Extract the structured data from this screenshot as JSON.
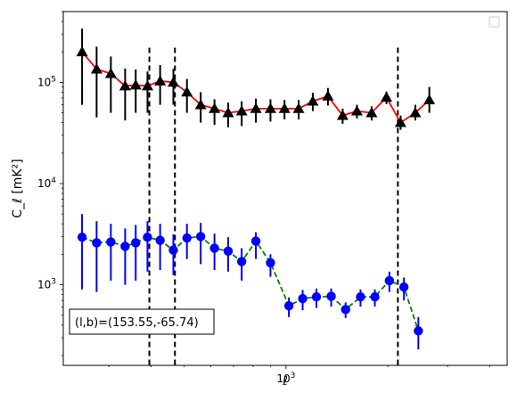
{
  "chart_data": {
    "type": "scatter",
    "title": "",
    "xlabel": "ℓ",
    "ylabel": "C_ℓ  [mK²]",
    "xscale": "log",
    "yscale": "log",
    "xlim": [
      220,
      4500
    ],
    "ylim": [
      160,
      500000
    ],
    "x_tick_labels": [
      {
        "value": 1000,
        "label": "10",
        "exp": "3"
      }
    ],
    "y_tick_labels": [
      {
        "value": 1000,
        "label": "10",
        "exp": "3"
      },
      {
        "value": 10000,
        "label": "10",
        "exp": "4"
      },
      {
        "value": 100000,
        "label": "10",
        "exp": "5"
      }
    ],
    "x": [
      250,
      276,
      304,
      335,
      369,
      406,
      448,
      493,
      543,
      598,
      659,
      726,
      800,
      881,
      971,
      1070,
      1178,
      1298,
      1430,
      1575,
      1735,
      1911,
      2105,
      2319,
      2555,
      2814,
      3100,
      3415,
      3762,
      4144
    ],
    "series": [
      {
        "color": "#ff0000",
        "marker": "triangle",
        "marker_color": "#000000",
        "errorbar_color": "#000000",
        "linestyle": "solid",
        "values": [
          200000,
          135000,
          122000,
          92000,
          94000,
          92000,
          103000,
          100000,
          80000,
          60000,
          55000,
          50000,
          52000,
          55000,
          55000,
          55000,
          55000,
          65000,
          73000,
          47000,
          52000,
          50000,
          71000,
          40000,
          50000,
          67000
        ],
        "xs": [
          250,
          276,
          304,
          335,
          360,
          390,
          425,
          465,
          510,
          560,
          615,
          675,
          740,
          815,
          900,
          990,
          1090,
          1200,
          1330,
          1470,
          1620,
          1790,
          1980,
          2180,
          2410,
          2650
        ],
        "err_low": [
          140000,
          90000,
          72000,
          50000,
          44000,
          42000,
          43000,
          40000,
          30000,
          20000,
          17000,
          14000,
          15000,
          15000,
          14000,
          12000,
          12000,
          13000,
          14000,
          8000,
          8000,
          8000,
          10000,
          6000,
          8000,
          17000
        ],
        "err_high": [
          140000,
          90000,
          58000,
          45000,
          40000,
          36000,
          45000,
          36000,
          28000,
          20000,
          13000,
          13000,
          13000,
          14000,
          13000,
          12000,
          12000,
          14000,
          15000,
          8000,
          8000,
          8000,
          10000,
          7000,
          10000,
          23000
        ]
      },
      {
        "color": "#008000",
        "marker": "circle",
        "marker_color": "#0000ff",
        "errorbar_color": "#0000ff",
        "linestyle": "dashed",
        "values": [
          2950,
          2600,
          2650,
          2400,
          2600,
          2950,
          2750,
          2200,
          2900,
          3000,
          2300,
          2150,
          1700,
          2700,
          1650,
          620,
          730,
          760,
          770,
          570,
          760,
          760,
          1100,
          950,
          350
        ],
        "xs": [
          250,
          276,
          304,
          335,
          360,
          390,
          425,
          465,
          510,
          560,
          615,
          675,
          740,
          815,
          900,
          1020,
          1120,
          1230,
          1360,
          1500,
          1660,
          1830,
          2020,
          2230,
          2460
        ],
        "err_low": [
          2050,
          1750,
          1550,
          1400,
          1500,
          1600,
          1350,
          950,
          1100,
          1400,
          900,
          800,
          600,
          900,
          450,
          140,
          170,
          170,
          160,
          100,
          150,
          150,
          250,
          250,
          120
        ],
        "err_high": [
          2050,
          1650,
          1350,
          1200,
          1300,
          1300,
          1250,
          950,
          1100,
          1100,
          900,
          800,
          600,
          600,
          350,
          130,
          160,
          160,
          150,
          100,
          140,
          140,
          250,
          230,
          130
        ]
      }
    ],
    "vlines": [
      395,
      470,
      2140
    ],
    "annotation": "(l,b)=(153.55,-65.74)",
    "legend": "top-right",
    "grid": false
  }
}
